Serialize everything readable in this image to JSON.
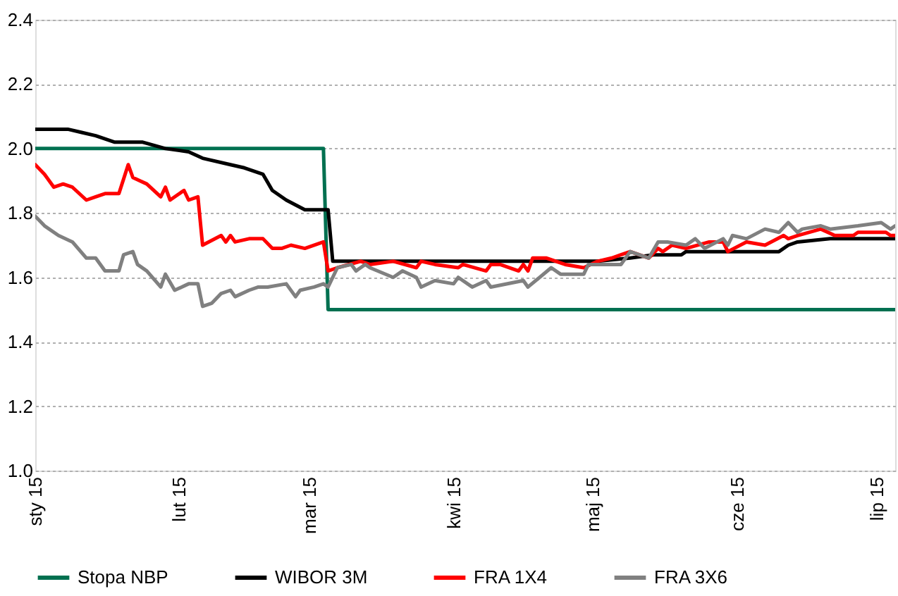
{
  "chart_data": {
    "type": "line",
    "xlim": [
      "2015-01-01",
      "2015-07-05"
    ],
    "xticks": [
      {
        "value": "2015-01-01",
        "label": "sty 15"
      },
      {
        "value": "2015-02-01",
        "label": "lut 15"
      },
      {
        "value": "2015-03-01",
        "label": "mar 15"
      },
      {
        "value": "2015-04-01",
        "label": "kwi 15"
      },
      {
        "value": "2015-05-01",
        "label": "maj 15"
      },
      {
        "value": "2015-06-01",
        "label": "cze 15"
      },
      {
        "value": "2015-07-01",
        "label": "lip 15"
      }
    ],
    "ylim": [
      1.0,
      2.4
    ],
    "yticks": [
      {
        "value": 1,
        "label": "1.0"
      },
      1.2,
      1.4,
      1.6,
      1.8,
      {
        "value": 2,
        "label": "2.0"
      },
      2.2,
      2.4
    ],
    "grid": "y",
    "legend": "bottom",
    "line_style": "solid",
    "marker": "none",
    "series": [
      {
        "name": "Stopa NBP",
        "color": "#007050",
        "x": [
          "2015-01-01",
          "2015-03-04",
          "2015-03-05",
          "2015-07-05"
        ],
        "values": [
          2.0,
          2.0,
          1.5,
          1.5
        ]
      },
      {
        "name": "WIBOR 3M",
        "color": "#000000",
        "x": [
          "2015-01-01",
          "2015-01-08",
          "2015-01-11",
          "2015-01-14",
          "2015-01-18",
          "2015-01-24",
          "2015-01-29",
          "2015-02-03",
          "2015-02-06",
          "2015-02-12",
          "2015-02-15",
          "2015-02-19",
          "2015-02-21",
          "2015-02-24",
          "2015-02-28",
          "2015-03-05",
          "2015-03-06",
          "2015-05-02",
          "2015-05-09",
          "2015-05-14",
          "2015-05-20",
          "2015-05-21",
          "2015-06-10",
          "2015-06-12",
          "2015-06-14",
          "2015-06-21",
          "2015-07-05"
        ],
        "values": [
          2.06,
          2.06,
          2.05,
          2.04,
          2.02,
          2.02,
          2.0,
          1.99,
          1.97,
          1.95,
          1.94,
          1.92,
          1.87,
          1.84,
          1.81,
          1.81,
          1.65,
          1.65,
          1.66,
          1.67,
          1.67,
          1.68,
          1.68,
          1.7,
          1.71,
          1.72,
          1.72
        ]
      },
      {
        "name": "FRA 1X4",
        "color": "#ff0000",
        "x": [
          "2015-01-01",
          "2015-01-03",
          "2015-01-05",
          "2015-01-07",
          "2015-01-09",
          "2015-01-12",
          "2015-01-14",
          "2015-01-16",
          "2015-01-19",
          "2015-01-21",
          "2015-01-22",
          "2015-01-25",
          "2015-01-28",
          "2015-01-29",
          "2015-01-30",
          "2015-02-02",
          "2015-02-03",
          "2015-02-05",
          "2015-02-06",
          "2015-02-10",
          "2015-02-11",
          "2015-02-12",
          "2015-02-13",
          "2015-02-16",
          "2015-02-19",
          "2015-02-21",
          "2015-02-23",
          "2015-02-25",
          "2015-02-28",
          "2015-03-04",
          "2015-03-05",
          "2015-03-07",
          "2015-03-12",
          "2015-03-14",
          "2015-03-19",
          "2015-03-24",
          "2015-03-25",
          "2015-03-28",
          "2015-04-02",
          "2015-04-03",
          "2015-04-08",
          "2015-04-09",
          "2015-04-11",
          "2015-04-15",
          "2015-04-16",
          "2015-04-17",
          "2015-04-18",
          "2015-04-21",
          "2015-04-23",
          "2015-04-25",
          "2015-04-29",
          "2015-05-02",
          "2015-05-05",
          "2015-05-07",
          "2015-05-09",
          "2015-05-13",
          "2015-05-15",
          "2015-05-16",
          "2015-05-18",
          "2015-05-21",
          "2015-05-26",
          "2015-05-29",
          "2015-05-30",
          "2015-06-03",
          "2015-06-07",
          "2015-06-11",
          "2015-06-12",
          "2015-06-14",
          "2015-06-19",
          "2015-06-22",
          "2015-06-26",
          "2015-06-27",
          "2015-07-03",
          "2015-07-04",
          "2015-07-05"
        ],
        "values": [
          1.95,
          1.92,
          1.88,
          1.89,
          1.88,
          1.84,
          1.85,
          1.86,
          1.86,
          1.95,
          1.91,
          1.89,
          1.85,
          1.88,
          1.84,
          1.87,
          1.84,
          1.85,
          1.7,
          1.73,
          1.71,
          1.73,
          1.71,
          1.72,
          1.72,
          1.69,
          1.69,
          1.7,
          1.69,
          1.71,
          1.62,
          1.63,
          1.65,
          1.64,
          1.65,
          1.63,
          1.65,
          1.64,
          1.63,
          1.64,
          1.62,
          1.64,
          1.64,
          1.62,
          1.64,
          1.62,
          1.66,
          1.66,
          1.65,
          1.64,
          1.63,
          1.65,
          1.66,
          1.67,
          1.68,
          1.66,
          1.69,
          1.68,
          1.7,
          1.69,
          1.71,
          1.71,
          1.68,
          1.71,
          1.7,
          1.73,
          1.72,
          1.73,
          1.75,
          1.73,
          1.73,
          1.74,
          1.74,
          1.73,
          1.73
        ]
      },
      {
        "name": "FRA 3X6",
        "color": "#808080",
        "x": [
          "2015-01-01",
          "2015-01-03",
          "2015-01-06",
          "2015-01-09",
          "2015-01-12",
          "2015-01-14",
          "2015-01-16",
          "2015-01-19",
          "2015-01-20",
          "2015-01-22",
          "2015-01-23",
          "2015-01-25",
          "2015-01-28",
          "2015-01-29",
          "2015-01-31",
          "2015-02-03",
          "2015-02-05",
          "2015-02-06",
          "2015-02-08",
          "2015-02-10",
          "2015-02-12",
          "2015-02-13",
          "2015-02-16",
          "2015-02-18",
          "2015-02-20",
          "2015-02-24",
          "2015-02-26",
          "2015-02-27",
          "2015-03-02",
          "2015-03-04",
          "2015-03-05",
          "2015-03-07",
          "2015-03-10",
          "2015-03-11",
          "2015-03-13",
          "2015-03-14",
          "2015-03-19",
          "2015-03-21",
          "2015-03-24",
          "2015-03-25",
          "2015-03-28",
          "2015-04-01",
          "2015-04-02",
          "2015-04-05",
          "2015-04-08",
          "2015-04-09",
          "2015-04-16",
          "2015-04-17",
          "2015-04-22",
          "2015-04-24",
          "2015-04-29",
          "2015-04-30",
          "2015-05-07",
          "2015-05-09",
          "2015-05-13",
          "2015-05-15",
          "2015-05-17",
          "2015-05-21",
          "2015-05-23",
          "2015-05-25",
          "2015-05-29",
          "2015-05-30",
          "2015-05-31",
          "2015-06-03",
          "2015-06-07",
          "2015-06-10",
          "2015-06-12",
          "2015-06-14",
          "2015-06-15",
          "2015-06-19",
          "2015-06-21",
          "2015-06-27",
          "2015-07-02",
          "2015-07-04",
          "2015-07-05"
        ],
        "values": [
          1.79,
          1.76,
          1.73,
          1.71,
          1.66,
          1.66,
          1.62,
          1.62,
          1.67,
          1.68,
          1.64,
          1.62,
          1.57,
          1.61,
          1.56,
          1.58,
          1.58,
          1.51,
          1.52,
          1.55,
          1.56,
          1.54,
          1.56,
          1.57,
          1.57,
          1.58,
          1.54,
          1.56,
          1.57,
          1.58,
          1.57,
          1.63,
          1.64,
          1.62,
          1.64,
          1.63,
          1.6,
          1.62,
          1.6,
          1.57,
          1.59,
          1.58,
          1.6,
          1.57,
          1.59,
          1.57,
          1.59,
          1.57,
          1.63,
          1.61,
          1.61,
          1.64,
          1.64,
          1.68,
          1.66,
          1.71,
          1.71,
          1.7,
          1.72,
          1.69,
          1.72,
          1.7,
          1.73,
          1.72,
          1.75,
          1.74,
          1.77,
          1.74,
          1.75,
          1.76,
          1.75,
          1.76,
          1.77,
          1.75,
          1.76
        ]
      }
    ]
  }
}
